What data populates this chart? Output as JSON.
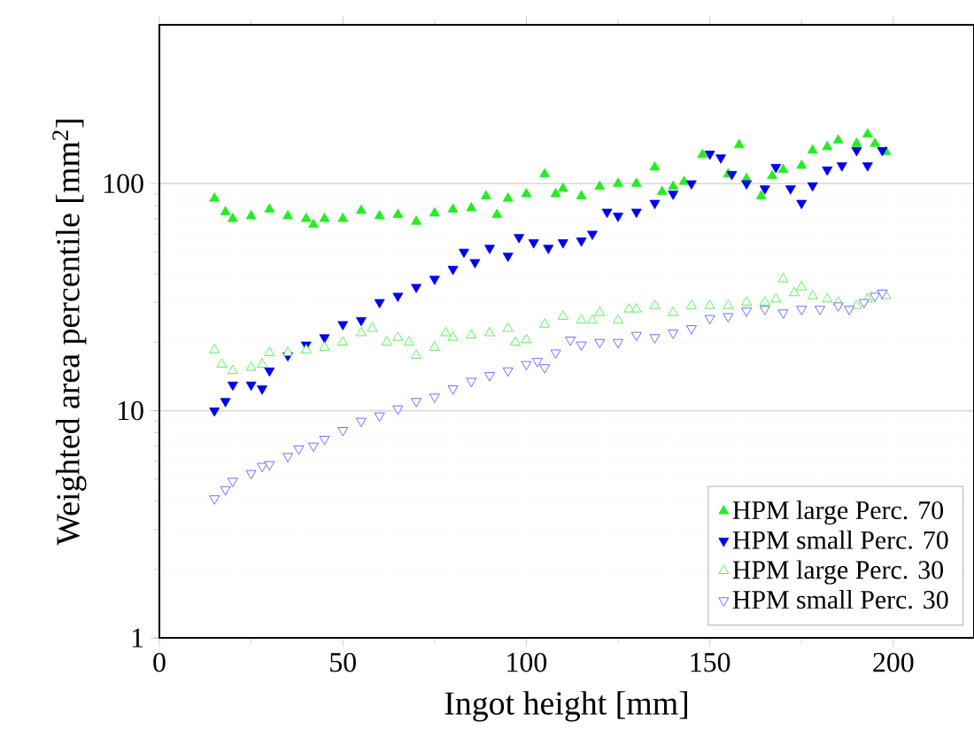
{
  "chart_data": {
    "type": "scatter",
    "xlabel": "Ingot height [mm]",
    "ylabel": "Weighted area percentile [mm$^{2}$]",
    "log": "y",
    "grid": "y",
    "legend": "bottom right",
    "xlim": [
      0,
      222
    ],
    "ylim": [
      1,
      500
    ],
    "xticks": [
      0,
      50,
      100,
      150,
      200
    ],
    "yticks": [
      1,
      10,
      100
    ],
    "series": [
      {
        "name": "HPM large Perc. 70",
        "color": "#22ee22",
        "marker": "triangle",
        "x": [
          15,
          18,
          20,
          25,
          30,
          35,
          40,
          42,
          45,
          50,
          55,
          60,
          65,
          70,
          75,
          80,
          85,
          89,
          92,
          95,
          100,
          105,
          108,
          110,
          115,
          120,
          125,
          130,
          135,
          137,
          140,
          143,
          148,
          155,
          158,
          160,
          164,
          167,
          170,
          175,
          178,
          182,
          185,
          190,
          193,
          195,
          198
        ],
        "values": [
          86,
          75,
          70,
          72,
          77,
          72,
          70,
          66,
          70,
          70,
          76,
          72,
          73,
          68,
          74,
          77,
          78,
          88,
          73,
          86,
          90,
          110,
          90,
          95,
          88,
          97,
          100,
          100,
          118,
          92,
          97,
          102,
          134,
          110,
          148,
          105,
          88,
          108,
          115,
          120,
          140,
          145,
          155,
          150,
          165,
          150,
          138
        ]
      },
      {
        "name": "HPM small Perc. 70",
        "color": "#0000ee",
        "marker": "triangle-down",
        "x": [
          15,
          18,
          20,
          25,
          28,
          30,
          35,
          40,
          45,
          50,
          55,
          60,
          65,
          70,
          75,
          80,
          83,
          86,
          90,
          95,
          98,
          102,
          106,
          110,
          115,
          118,
          122,
          125,
          130,
          135,
          140,
          145,
          150,
          153,
          156,
          160,
          165,
          168,
          172,
          175,
          178,
          182,
          186,
          190,
          193,
          197
        ],
        "values": [
          10,
          11,
          13,
          13,
          12.5,
          15,
          17.5,
          19.5,
          21,
          24,
          25,
          30,
          32,
          35,
          38,
          42,
          50,
          45,
          52,
          48,
          58,
          55,
          52,
          55,
          56,
          60,
          75,
          72,
          75,
          82,
          90,
          100,
          135,
          130,
          110,
          100,
          95,
          118,
          95,
          82,
          98,
          115,
          120,
          140,
          120,
          140
        ]
      },
      {
        "name": "HPM large Perc. 30",
        "color": "#33ee33",
        "marker": "triangle-open",
        "x": [
          15,
          17,
          20,
          25,
          28,
          30,
          35,
          40,
          45,
          50,
          55,
          58,
          62,
          65,
          68,
          70,
          75,
          78,
          80,
          85,
          90,
          95,
          97,
          100,
          105,
          110,
          115,
          118,
          120,
          125,
          128,
          130,
          135,
          140,
          145,
          150,
          155,
          160,
          165,
          168,
          170,
          173,
          175,
          178,
          182,
          185,
          190,
          193,
          198
        ],
        "values": [
          18.5,
          16,
          15,
          15.5,
          16,
          18,
          18,
          18.5,
          19,
          20,
          22,
          23,
          20,
          21,
          20,
          17.5,
          19,
          22,
          21,
          21.5,
          22,
          23,
          20,
          20.5,
          24,
          26,
          25,
          25,
          27,
          25,
          28,
          28,
          29,
          27,
          29,
          29,
          29,
          30,
          30,
          31,
          38,
          33,
          35,
          32,
          31,
          30,
          29,
          31,
          32
        ]
      },
      {
        "name": "HPM small Perc. 30",
        "color": "#4a4aff",
        "marker": "triangle-down-open",
        "x": [
          15,
          18,
          20,
          25,
          28,
          30,
          35,
          38,
          42,
          45,
          50,
          55,
          60,
          65,
          70,
          75,
          80,
          85,
          90,
          95,
          100,
          103,
          105,
          108,
          112,
          115,
          120,
          125,
          130,
          135,
          140,
          145,
          150,
          155,
          160,
          165,
          170,
          175,
          180,
          185,
          188,
          192,
          195,
          197
        ],
        "values": [
          4.1,
          4.5,
          4.9,
          5.3,
          5.7,
          5.8,
          6.3,
          6.8,
          7.0,
          7.5,
          8.2,
          9.0,
          9.5,
          10.2,
          11,
          11.5,
          12.5,
          13.5,
          14.3,
          15,
          16,
          16.5,
          15.5,
          18,
          20.5,
          19.5,
          20,
          20,
          21.5,
          21,
          22,
          23,
          25.5,
          26,
          27.5,
          28,
          27,
          28,
          28,
          29,
          28,
          30,
          32,
          33
        ]
      }
    ]
  }
}
